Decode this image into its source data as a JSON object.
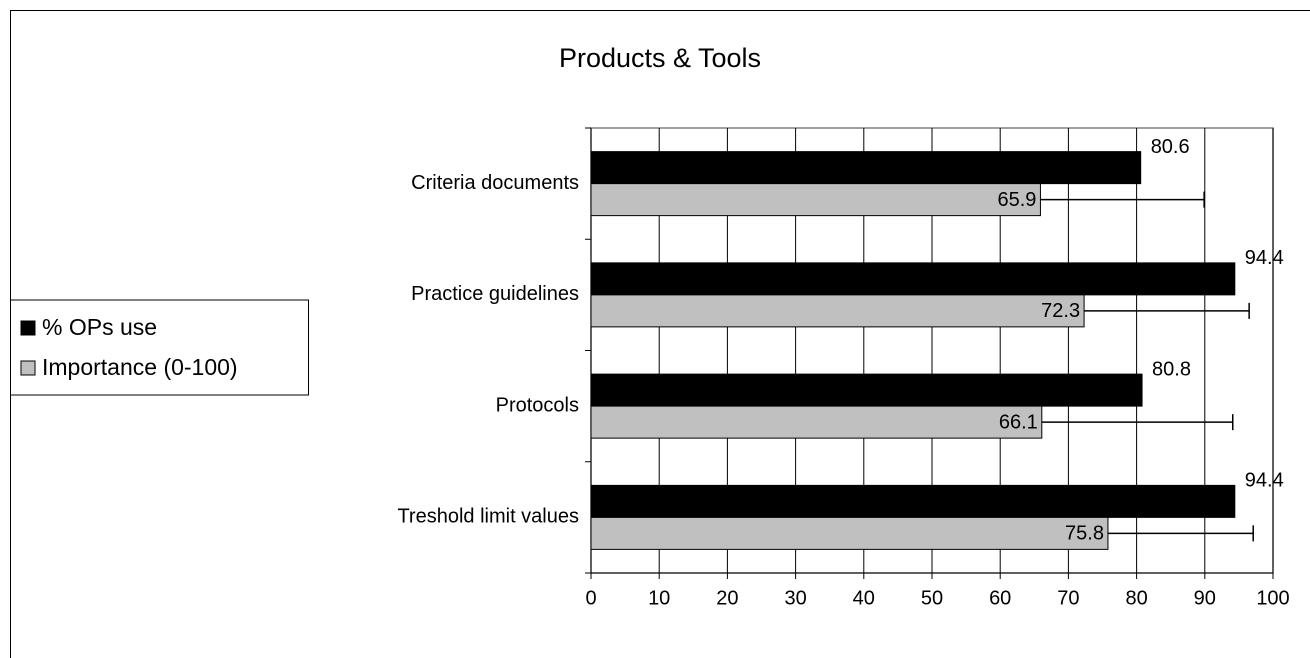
{
  "chart_data": {
    "type": "hbar",
    "title": "Products & Tools",
    "categories": [
      "Criteria documents",
      "Practice guidelines",
      "Protocols",
      "Treshold limit values"
    ],
    "series": [
      {
        "name": "% OPs use",
        "color": "#000000",
        "values": [
          80.6,
          94.4,
          80.8,
          94.4
        ]
      },
      {
        "name": "Importance (0-100)",
        "color": "#c0c0c0",
        "values": [
          65.9,
          72.3,
          66.1,
          75.8
        ],
        "errors": [
          24.0,
          24.2,
          28.0,
          21.3
        ]
      }
    ],
    "xlim": [
      0,
      100
    ],
    "xticks": [
      0,
      10,
      20,
      30,
      40,
      50,
      60,
      70,
      80,
      90,
      100
    ],
    "grid": true,
    "legend": "left"
  }
}
